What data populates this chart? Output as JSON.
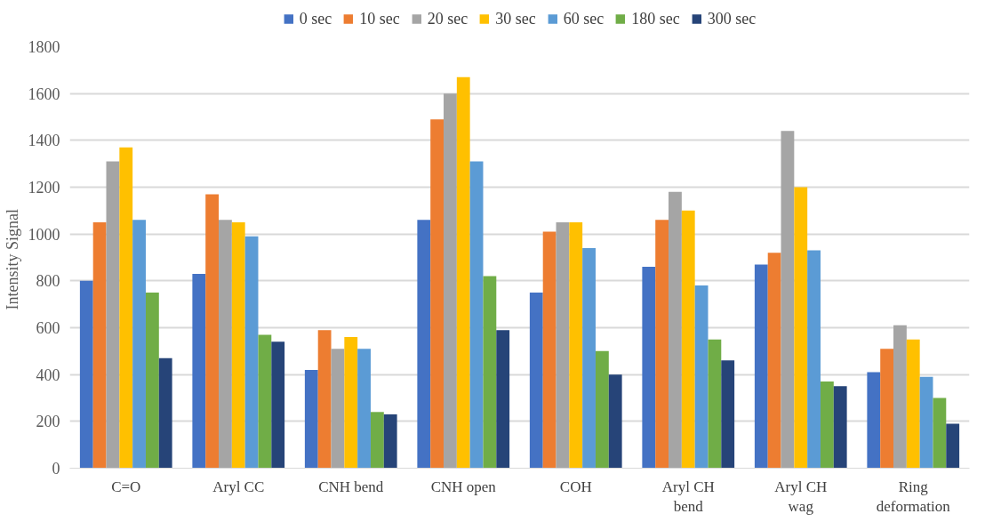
{
  "chart_data": {
    "type": "bar",
    "ylabel": "Intensity  Signal",
    "categories": [
      "C=O",
      "Aryl CC",
      "CNH bend",
      "CNH open",
      "COH",
      "Aryl CH bend",
      "Aryl CH wag",
      "Ring deformation"
    ],
    "series": [
      {
        "name": "0 sec",
        "color": "#4472c4",
        "values": [
          800,
          830,
          420,
          1060,
          750,
          860,
          870,
          410
        ]
      },
      {
        "name": "10 sec",
        "color": "#ed7d31",
        "values": [
          1050,
          1170,
          590,
          1490,
          1010,
          1060,
          920,
          510
        ]
      },
      {
        "name": "20 sec",
        "color": "#a5a5a5",
        "values": [
          1310,
          1060,
          510,
          1600,
          1050,
          1180,
          1440,
          610
        ]
      },
      {
        "name": "30 sec",
        "color": "#ffc000",
        "values": [
          1370,
          1050,
          560,
          1670,
          1050,
          1100,
          1200,
          550
        ]
      },
      {
        "name": "60 sec",
        "color": "#5b9bd5",
        "values": [
          1060,
          990,
          510,
          1310,
          940,
          780,
          930,
          390
        ]
      },
      {
        "name": "180 sec",
        "color": "#70ad47",
        "values": [
          750,
          570,
          240,
          820,
          500,
          550,
          370,
          300
        ]
      },
      {
        "name": "300 sec",
        "color": "#264478",
        "values": [
          470,
          540,
          230,
          590,
          400,
          460,
          350,
          190
        ]
      }
    ],
    "ylim": [
      0,
      1800
    ],
    "yticks": [
      0,
      200,
      400,
      600,
      800,
      1000,
      1200,
      1400,
      1600,
      1800
    ],
    "grid": "y",
    "legend": "top"
  }
}
